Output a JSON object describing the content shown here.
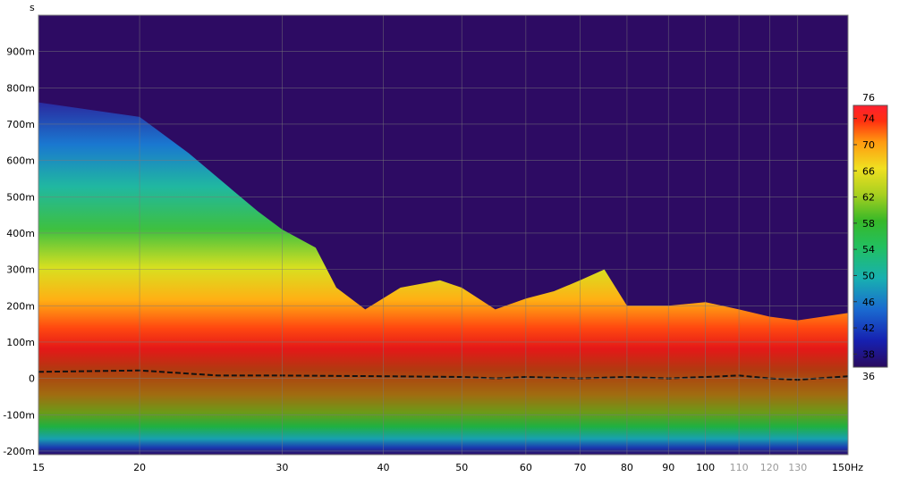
{
  "chart_data": {
    "type": "heatmap",
    "title": "",
    "xlabel": "Hz",
    "ylabel": "s",
    "x_scale": "log",
    "xlim": [
      15,
      150
    ],
    "ylim": [
      -0.21,
      1.0
    ],
    "x_ticks": [
      {
        "value": 15,
        "label": "15",
        "muted": false
      },
      {
        "value": 20,
        "label": "20",
        "muted": false
      },
      {
        "value": 30,
        "label": "30",
        "muted": false
      },
      {
        "value": 40,
        "label": "40",
        "muted": false
      },
      {
        "value": 50,
        "label": "50",
        "muted": false
      },
      {
        "value": 60,
        "label": "60",
        "muted": false
      },
      {
        "value": 70,
        "label": "70",
        "muted": false
      },
      {
        "value": 80,
        "label": "80",
        "muted": false
      },
      {
        "value": 90,
        "label": "90",
        "muted": false
      },
      {
        "value": 100,
        "label": "100",
        "muted": false
      },
      {
        "value": 110,
        "label": "110",
        "muted": true
      },
      {
        "value": 120,
        "label": "120",
        "muted": true
      },
      {
        "value": 130,
        "label": "130",
        "muted": true
      },
      {
        "value": 150,
        "label": "150Hz",
        "muted": false
      }
    ],
    "y_ticks": [
      {
        "value": 0.9,
        "label": "900m"
      },
      {
        "value": 0.8,
        "label": "800m"
      },
      {
        "value": 0.7,
        "label": "700m"
      },
      {
        "value": 0.6,
        "label": "600m"
      },
      {
        "value": 0.5,
        "label": "500m"
      },
      {
        "value": 0.4,
        "label": "400m"
      },
      {
        "value": 0.3,
        "label": "300m"
      },
      {
        "value": 0.2,
        "label": "200m"
      },
      {
        "value": 0.1,
        "label": "100m"
      },
      {
        "value": 0,
        "label": "0"
      },
      {
        "value": -0.1,
        "label": "-100m"
      },
      {
        "value": -0.2,
        "label": "-200m"
      }
    ],
    "colorbar": {
      "min": 36,
      "max": 76,
      "min_label": "36",
      "max_label": "76",
      "ticks": [
        {
          "value": 74,
          "label": "74"
        },
        {
          "value": 70,
          "label": "70"
        },
        {
          "value": 66,
          "label": "66"
        },
        {
          "value": 62,
          "label": "62"
        },
        {
          "value": 58,
          "label": "58"
        },
        {
          "value": 54,
          "label": "54"
        },
        {
          "value": 50,
          "label": "50"
        },
        {
          "value": 46,
          "label": "46"
        },
        {
          "value": 42,
          "label": "42"
        },
        {
          "value": 38,
          "label": "38"
        }
      ],
      "colors": [
        "#2a0a5e",
        "#1620b0",
        "#1a6ad0",
        "#18b0b0",
        "#22c060",
        "#38b828",
        "#a8d020",
        "#f0e020",
        "#ff9a10",
        "#ff3010",
        "#ff2030"
      ]
    },
    "background_color": "#2d0b63",
    "decay_top": [
      {
        "x": 15,
        "y": 0.76
      },
      {
        "x": 20,
        "y": 0.72
      },
      {
        "x": 23,
        "y": 0.62
      },
      {
        "x": 26,
        "y": 0.52
      },
      {
        "x": 28,
        "y": 0.46
      },
      {
        "x": 30,
        "y": 0.41
      },
      {
        "x": 33,
        "y": 0.36
      },
      {
        "x": 35,
        "y": 0.25
      },
      {
        "x": 38,
        "y": 0.19
      },
      {
        "x": 42,
        "y": 0.25
      },
      {
        "x": 47,
        "y": 0.27
      },
      {
        "x": 50,
        "y": 0.25
      },
      {
        "x": 55,
        "y": 0.19
      },
      {
        "x": 60,
        "y": 0.22
      },
      {
        "x": 65,
        "y": 0.24
      },
      {
        "x": 70,
        "y": 0.27
      },
      {
        "x": 75,
        "y": 0.3
      },
      {
        "x": 80,
        "y": 0.2
      },
      {
        "x": 90,
        "y": 0.2
      },
      {
        "x": 100,
        "y": 0.21
      },
      {
        "x": 110,
        "y": 0.19
      },
      {
        "x": 120,
        "y": 0.17
      },
      {
        "x": 130,
        "y": 0.16
      },
      {
        "x": 150,
        "y": 0.18
      }
    ],
    "peak_line": [
      {
        "x": 15,
        "y": 0.018
      },
      {
        "x": 20,
        "y": 0.022
      },
      {
        "x": 25,
        "y": 0.008
      },
      {
        "x": 30,
        "y": 0.008
      },
      {
        "x": 40,
        "y": 0.006
      },
      {
        "x": 50,
        "y": 0.004
      },
      {
        "x": 55,
        "y": 0.0
      },
      {
        "x": 60,
        "y": 0.004
      },
      {
        "x": 70,
        "y": 0.0
      },
      {
        "x": 80,
        "y": 0.004
      },
      {
        "x": 90,
        "y": 0.0
      },
      {
        "x": 100,
        "y": 0.004
      },
      {
        "x": 110,
        "y": 0.008
      },
      {
        "x": 120,
        "y": 0.0
      },
      {
        "x": 130,
        "y": -0.004
      },
      {
        "x": 150,
        "y": 0.006
      }
    ],
    "peak_line_style": "dashed"
  }
}
